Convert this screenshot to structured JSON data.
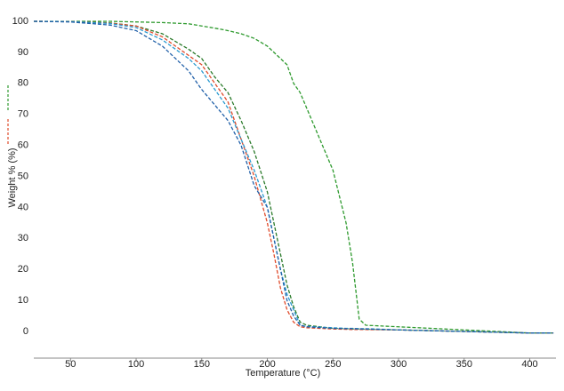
{
  "chart_data": {
    "type": "line",
    "x_label": "Temperature (°C)",
    "y_label": "Weight % (%)",
    "x": [
      22,
      50,
      80,
      100,
      120,
      140,
      150,
      160,
      170,
      180,
      190,
      200,
      205,
      210,
      215,
      220,
      225,
      230,
      250,
      260,
      265,
      270,
      275,
      300,
      350,
      400,
      418
    ],
    "series": [
      {
        "color": "#2e9a2e",
        "values": [
          100,
          100,
          100,
          99.8,
          99.6,
          99.2,
          98.5,
          97.8,
          97,
          96,
          94.5,
          92,
          90,
          88,
          86,
          80,
          77,
          72,
          52,
          35,
          22,
          4,
          2,
          1.5,
          0.5,
          -0.5,
          -0.5
        ]
      },
      {
        "color": "#2a7a2a",
        "values": [
          100,
          99.9,
          99.5,
          98.5,
          96,
          91,
          88,
          82,
          77,
          68,
          58,
          45,
          35,
          25,
          15,
          8,
          3,
          2,
          1,
          0.9,
          0.8,
          0.8,
          0.7,
          0.5,
          0,
          -0.5,
          -0.5
        ]
      },
      {
        "color": "#e04a2a",
        "values": [
          100,
          99.9,
          99.4,
          98.5,
          95,
          89,
          86,
          80,
          74,
          62,
          50,
          35,
          25,
          14,
          7,
          3,
          1.5,
          1.2,
          0.8,
          0.7,
          0.6,
          0.6,
          0.6,
          0.5,
          0,
          -0.5,
          -0.5
        ]
      },
      {
        "color": "#2a9ad0",
        "values": [
          100,
          99.9,
          99.3,
          98,
          94,
          88,
          84,
          78,
          72,
          62,
          52,
          40,
          30,
          20,
          12,
          7,
          2,
          1.6,
          1.2,
          1,
          1,
          0.9,
          0.9,
          0.5,
          0,
          -0.5,
          -0.5
        ]
      },
      {
        "color": "#1f5fa8",
        "values": [
          100,
          99.8,
          98.8,
          97,
          92,
          84,
          78,
          73,
          68,
          60,
          47,
          40,
          30,
          20,
          10,
          5,
          2,
          1.5,
          1,
          0.9,
          0.9,
          0.8,
          0.8,
          0.5,
          0,
          -0.5,
          -0.5
        ]
      }
    ],
    "xlim": [
      22,
      420
    ],
    "ylim": [
      -8.6,
      100
    ],
    "xticks": [
      50,
      100,
      150,
      200,
      250,
      300,
      350,
      400
    ],
    "yticks": [
      0,
      10,
      20,
      30,
      40,
      50,
      60,
      70,
      80,
      90,
      100
    ],
    "grid": false
  }
}
